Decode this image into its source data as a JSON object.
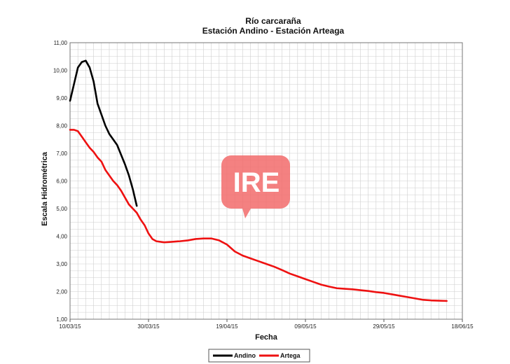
{
  "chart_data": {
    "type": "line",
    "title": "Río carcaraña",
    "subtitle": "Estación Andino - Estación Arteaga",
    "xlabel": "Fecha",
    "ylabel": "Escala Hidrométrica",
    "x_ticks": [
      "10/03/15",
      "30/03/15",
      "19/04/15",
      "09/05/15",
      "29/05/15",
      "18/06/15"
    ],
    "x_tick_days": [
      0,
      20,
      40,
      60,
      80,
      100
    ],
    "xlim": [
      0,
      100
    ],
    "y_ticks": [
      "1,00",
      "2,00",
      "3,00",
      "4,00",
      "5,00",
      "6,00",
      "7,00",
      "8,00",
      "9,00",
      "10,00",
      "11,00"
    ],
    "ylim": [
      1,
      11
    ],
    "grid": true,
    "legend_position": "bottom",
    "watermark": "IRE",
    "series": [
      {
        "name": "Andino",
        "color": "#000000",
        "x": [
          0,
          1,
          2,
          3,
          4,
          5,
          6,
          7,
          8,
          9,
          10,
          11,
          12,
          13,
          14,
          15,
          16,
          17,
          18,
          19,
          20,
          21,
          22
        ],
        "y": [
          8.9,
          9.5,
          10.1,
          10.3,
          10.35,
          10.1,
          9.6,
          8.8,
          8.4,
          8.0,
          7.7,
          7.5,
          7.3,
          6.95,
          6.6,
          6.2,
          5.7,
          5.1,
          null,
          null,
          null,
          null,
          null
        ]
      },
      {
        "name": "Artega",
        "color": "#ee1111",
        "x": [
          0,
          1,
          2,
          3,
          4,
          5,
          6,
          7,
          8,
          9,
          10,
          11,
          12,
          13,
          14,
          15,
          16,
          17,
          18,
          19,
          20,
          21,
          22,
          24,
          26,
          28,
          30,
          32,
          34,
          36,
          38,
          40,
          42,
          44,
          46,
          48,
          50,
          52,
          54,
          56,
          58,
          60,
          62,
          64,
          66,
          68,
          70,
          72,
          74,
          76,
          78,
          80,
          82,
          84,
          86,
          88,
          90,
          92,
          94,
          96
        ],
        "y": [
          7.85,
          7.85,
          7.8,
          7.6,
          7.4,
          7.2,
          7.05,
          6.85,
          6.7,
          6.4,
          6.2,
          6.0,
          5.85,
          5.65,
          5.4,
          5.15,
          5.0,
          4.85,
          4.6,
          4.4,
          4.1,
          3.9,
          3.82,
          3.78,
          3.8,
          3.82,
          3.85,
          3.9,
          3.92,
          3.92,
          3.85,
          3.7,
          3.45,
          3.3,
          3.2,
          3.1,
          3.0,
          2.9,
          2.78,
          2.65,
          2.55,
          2.45,
          2.35,
          2.25,
          2.18,
          2.12,
          2.1,
          2.08,
          2.05,
          2.02,
          1.98,
          1.95,
          1.9,
          1.85,
          1.8,
          1.75,
          1.7,
          1.68,
          1.67,
          1.66
        ]
      }
    ]
  }
}
